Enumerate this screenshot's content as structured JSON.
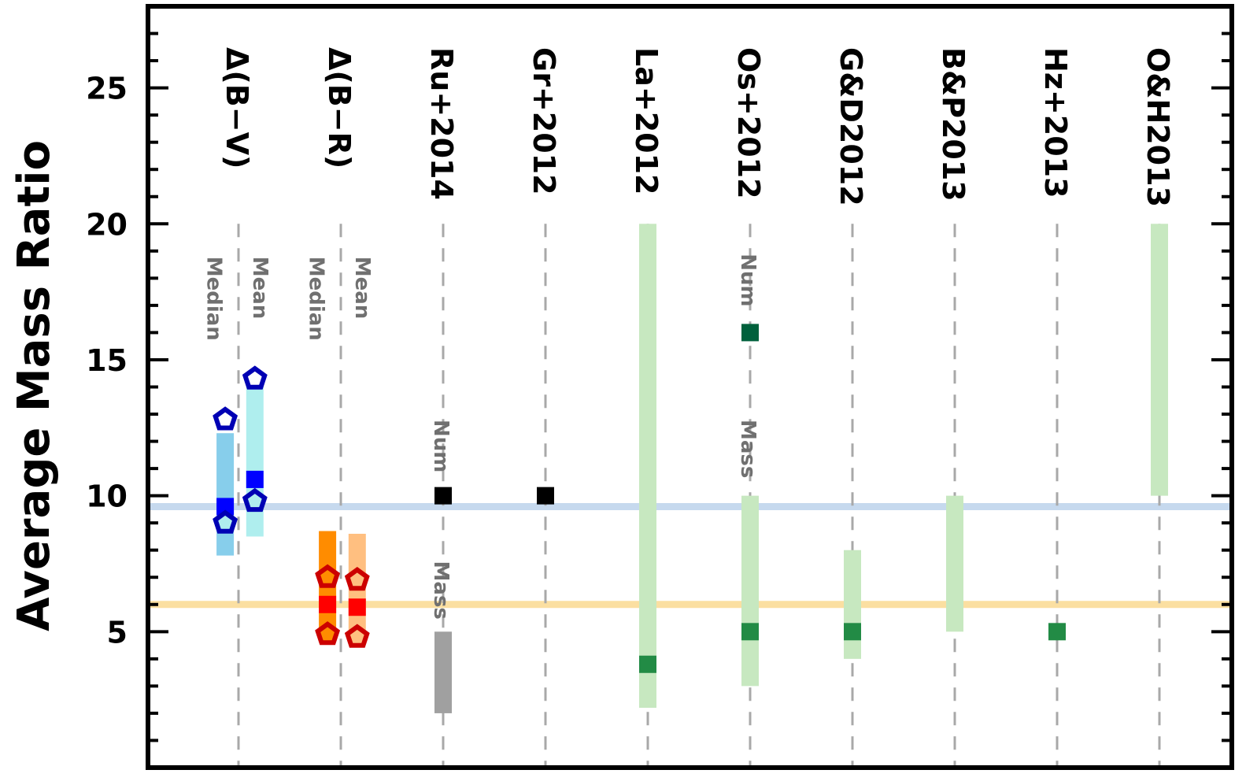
{
  "chart_data": {
    "type": "scatter",
    "title": "",
    "xlabel": "",
    "ylabel": "Average Mass Ratio",
    "ylim": [
      0,
      28
    ],
    "yticks": [
      5,
      10,
      15,
      20,
      25
    ],
    "ytick_labels": [
      "5",
      "10",
      "15",
      "20",
      "25"
    ],
    "yminor_step": 1,
    "columns": [
      {
        "label": "Δ(B−V)",
        "x": 1
      },
      {
        "label": "Δ(B−R)",
        "x": 2
      },
      {
        "label": "Ru+2014",
        "x": 3
      },
      {
        "label": "Gr+2012",
        "x": 4
      },
      {
        "label": "La+2012",
        "x": 5
      },
      {
        "label": "Os+2012",
        "x": 6
      },
      {
        "label": "G&D2012",
        "x": 7
      },
      {
        "label": "B&P2013",
        "x": 8
      },
      {
        "label": "Hz+2013",
        "x": 9
      },
      {
        "label": "O&H2013",
        "x": 10
      }
    ],
    "reference_lines": [
      {
        "y": 9.6,
        "color": "#c6d9ee"
      },
      {
        "y": 6.0,
        "color": "#fbdfa1"
      }
    ],
    "ranges": [
      {
        "x": 0.87,
        "low": 7.8,
        "high": 12.3,
        "color": "#87ceeb"
      },
      {
        "x": 1.16,
        "low": 8.5,
        "high": 14.1,
        "color": "#afeeee"
      },
      {
        "x": 1.87,
        "low": 4.8,
        "high": 8.7,
        "color": "#ff8c00"
      },
      {
        "x": 2.16,
        "low": 4.8,
        "high": 8.6,
        "color": "#ffbf80"
      },
      {
        "x": 3,
        "low": 2.0,
        "high": 5.0,
        "color": "#a0a0a0"
      },
      {
        "x": 5,
        "low": 2.2,
        "high": 20.0,
        "color": "#c7e8c0"
      },
      {
        "x": 6,
        "low": 3.0,
        "high": 10.0,
        "color": "#c7e8c0"
      },
      {
        "x": 7,
        "low": 4.0,
        "high": 8.0,
        "color": "#c7e8c0"
      },
      {
        "x": 8,
        "low": 5.0,
        "high": 10.0,
        "color": "#c7e8c0"
      },
      {
        "x": 10,
        "low": 10.0,
        "high": 20.0,
        "color": "#c7e8c0"
      }
    ],
    "squares": [
      {
        "x": 0.87,
        "y": 9.6,
        "color": "#0000ff"
      },
      {
        "x": 1.16,
        "y": 10.6,
        "color": "#0000ff"
      },
      {
        "x": 1.87,
        "y": 6.0,
        "color": "#ff0000"
      },
      {
        "x": 2.16,
        "y": 5.9,
        "color": "#ff0000"
      },
      {
        "x": 3,
        "y": 10.0,
        "color": "#000000"
      },
      {
        "x": 4,
        "y": 10.0,
        "color": "#000000"
      },
      {
        "x": 5,
        "y": 3.8,
        "color": "#228b45"
      },
      {
        "x": 6,
        "y": 16.0,
        "color": "#00613c"
      },
      {
        "x": 6,
        "y": 5.0,
        "color": "#228b45"
      },
      {
        "x": 7,
        "y": 5.0,
        "color": "#228b45"
      },
      {
        "x": 9,
        "y": 5.0,
        "color": "#228b45"
      }
    ],
    "pentagons": [
      {
        "x": 0.87,
        "y": 12.8,
        "stroke": "#0000b4",
        "fill": "#ffffff"
      },
      {
        "x": 0.87,
        "y": 9.0,
        "stroke": "#0000b4",
        "fill": "#afeeee"
      },
      {
        "x": 1.16,
        "y": 14.3,
        "stroke": "#0000b4",
        "fill": "#ffffff"
      },
      {
        "x": 1.16,
        "y": 9.8,
        "stroke": "#0000b4",
        "fill": "#afeeee"
      },
      {
        "x": 1.87,
        "y": 7.0,
        "stroke": "#cc0000",
        "fill": "#ff8c00"
      },
      {
        "x": 1.87,
        "y": 4.9,
        "stroke": "#cc0000",
        "fill": "#ff8c00"
      },
      {
        "x": 2.16,
        "y": 6.9,
        "stroke": "#cc0000",
        "fill": "#ffbf80"
      },
      {
        "x": 2.16,
        "y": 4.8,
        "stroke": "#cc0000",
        "fill": "#ffbf80"
      }
    ],
    "annotations": [
      {
        "text": "Median",
        "x": 0.78,
        "y_top": 18.8
      },
      {
        "text": "Mean",
        "x": 1.23,
        "y_top": 18.8
      },
      {
        "text": "Median",
        "x": 1.78,
        "y_top": 18.8
      },
      {
        "text": "Mean",
        "x": 2.23,
        "y_top": 18.8
      },
      {
        "text": "Num",
        "x": 3,
        "y_top": 12.8
      },
      {
        "text": "Mass",
        "x": 3,
        "y_top": 7.6
      },
      {
        "text": "Num",
        "x": 6,
        "y_top": 18.9
      },
      {
        "text": "Mass",
        "x": 6,
        "y_top": 12.8
      }
    ]
  }
}
